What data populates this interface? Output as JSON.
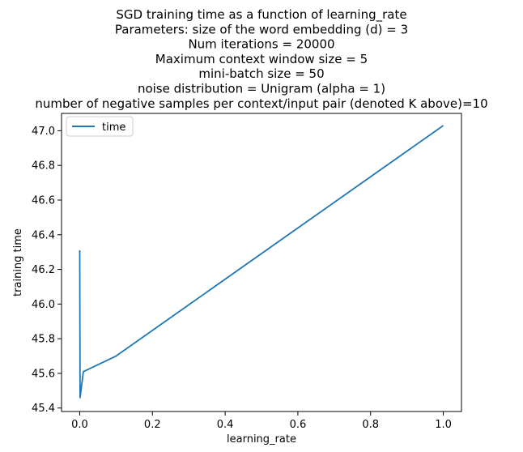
{
  "chart_data": {
    "type": "line",
    "title_lines": [
      "SGD training time as a function of learning_rate",
      "Parameters: size of the word embedding (d) = 3",
      "Num iterations = 20000",
      "Maximum context window size = 5",
      "mini-batch size = 50",
      "noise distribution = Unigram (alpha = 1)",
      "number of negative samples per context/input pair (denoted K above)=10"
    ],
    "xlabel": "learning_rate",
    "ylabel": "training time",
    "xlim": [
      -0.05,
      1.05
    ],
    "ylim": [
      45.38,
      47.1
    ],
    "x_ticks": [
      0.0,
      0.2,
      0.4,
      0.6,
      0.8,
      1.0
    ],
    "x_tick_labels": [
      "0.0",
      "0.2",
      "0.4",
      "0.6",
      "0.8",
      "1.0"
    ],
    "y_ticks": [
      45.4,
      45.6,
      45.8,
      46.0,
      46.2,
      46.4,
      46.6,
      46.8,
      47.0
    ],
    "y_tick_labels": [
      "45.4",
      "45.6",
      "45.8",
      "46.0",
      "46.2",
      "46.4",
      "46.6",
      "46.8",
      "47.0"
    ],
    "legend_position": "upper-left",
    "grid": false,
    "series": [
      {
        "name": "time",
        "color": "#1f77b4",
        "x": [
          0.0001,
          0.001,
          0.01,
          0.1,
          1.0
        ],
        "y": [
          46.31,
          45.46,
          45.61,
          45.7,
          47.03
        ]
      }
    ]
  }
}
